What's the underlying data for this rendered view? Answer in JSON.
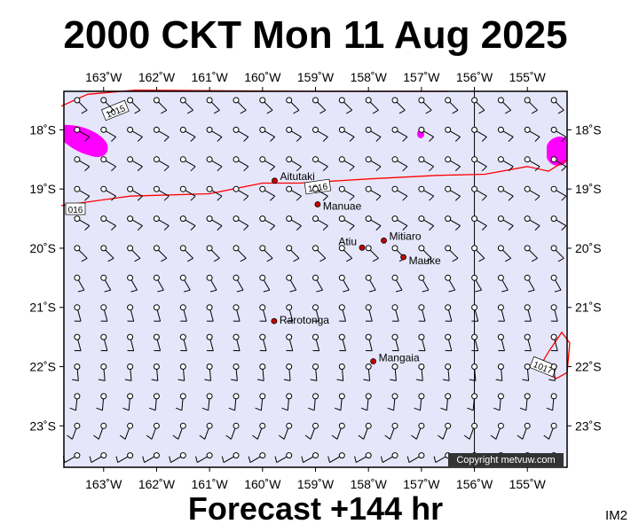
{
  "header": {
    "title": "2000 CKT Mon 11 Aug 2025"
  },
  "footer": {
    "forecast": "Forecast +144 hr",
    "model_id": "IM2",
    "copyright": "Copyright metvuw.com"
  },
  "map": {
    "lon_range": [
      -163.75,
      -154.25
    ],
    "lat_range": [
      -17.35,
      -23.7
    ],
    "lon_ticks": [
      {
        "lon": -163,
        "label": "163˚W"
      },
      {
        "lon": -162,
        "label": "162˚W"
      },
      {
        "lon": -161,
        "label": "161˚W"
      },
      {
        "lon": -160,
        "label": "160˚W"
      },
      {
        "lon": -159,
        "label": "159˚W"
      },
      {
        "lon": -158,
        "label": "158˚W"
      },
      {
        "lon": -157,
        "label": "157˚W"
      },
      {
        "lon": -156,
        "label": "156˚W"
      },
      {
        "lon": -155,
        "label": "155˚W"
      }
    ],
    "lat_ticks": [
      {
        "lat": -18,
        "label": "18˚S"
      },
      {
        "lat": -19,
        "label": "19˚S"
      },
      {
        "lat": -20,
        "label": "20˚S"
      },
      {
        "lat": -21,
        "label": "21˚S"
      },
      {
        "lat": -22,
        "label": "22˚S"
      },
      {
        "lat": -23,
        "label": "23˚S"
      }
    ],
    "colors": {
      "ocean": "#e6e6fa",
      "isobar": "#ff0000",
      "rain": "#ff00ff",
      "place_dot": "#cc0000",
      "barb": "#000000"
    },
    "places": [
      {
        "name": "Aitutaki",
        "lon": -159.77,
        "lat": -18.86
      },
      {
        "name": "Manuae",
        "lon": -158.96,
        "lat": -19.26
      },
      {
        "name": "Atiu",
        "lon": -158.12,
        "lat": -19.99
      },
      {
        "name": "Mitiaro",
        "lon": -157.71,
        "lat": -19.87
      },
      {
        "name": "Mauke",
        "lon": -157.34,
        "lat": -20.15
      },
      {
        "name": "Rarotonga",
        "lon": -159.78,
        "lat": -21.23
      },
      {
        "name": "Mangaia",
        "lon": -157.91,
        "lat": -21.91
      }
    ],
    "isobars": [
      {
        "label": "1015",
        "points": [
          [
            -163.8,
            -17.6
          ],
          [
            -163.3,
            -17.4
          ],
          [
            -162.4,
            -17.33
          ],
          [
            -159,
            -17.35
          ],
          [
            -156.5,
            -17.35
          ]
        ]
      },
      {
        "label": "1016",
        "points": [
          [
            -163.8,
            -19.28
          ],
          [
            -162.5,
            -19.12
          ],
          [
            -161,
            -19.08
          ],
          [
            -160,
            -18.9
          ],
          [
            -159.3,
            -18.9
          ],
          [
            -158,
            -18.83
          ],
          [
            -156.7,
            -18.77
          ],
          [
            -155.8,
            -18.75
          ],
          [
            -155,
            -18.62
          ],
          [
            -154.6,
            -18.7
          ],
          [
            -154.25,
            -18.5
          ]
        ]
      },
      {
        "label": "1017",
        "points": [
          [
            -154.6,
            -21.75
          ],
          [
            -154.35,
            -21.42
          ],
          [
            -154.2,
            -21.6
          ],
          [
            -154.25,
            -22.1
          ],
          [
            -154.45,
            -22.2
          ],
          [
            -154.8,
            -22.05
          ],
          [
            -154.6,
            -21.75
          ]
        ]
      }
    ],
    "wind_grid": {
      "lons": [
        -163.5,
        -163,
        -162.5,
        -162,
        -161.5,
        -161,
        -160.5,
        -160,
        -159.5,
        -159,
        -158.5,
        -158,
        -157.5,
        -157,
        -156.5,
        -156,
        -155.5,
        -155,
        -154.5
      ],
      "lats": [
        -17.5,
        -18,
        -18.5,
        -19,
        -19.5,
        -20,
        -20.5,
        -21,
        -21.5,
        -22,
        -22.5,
        -23,
        -23.5
      ],
      "row_from_deg": [
        135,
        120,
        120,
        120,
        120,
        135,
        150,
        165,
        165,
        175,
        185,
        200,
        240
      ]
    }
  }
}
